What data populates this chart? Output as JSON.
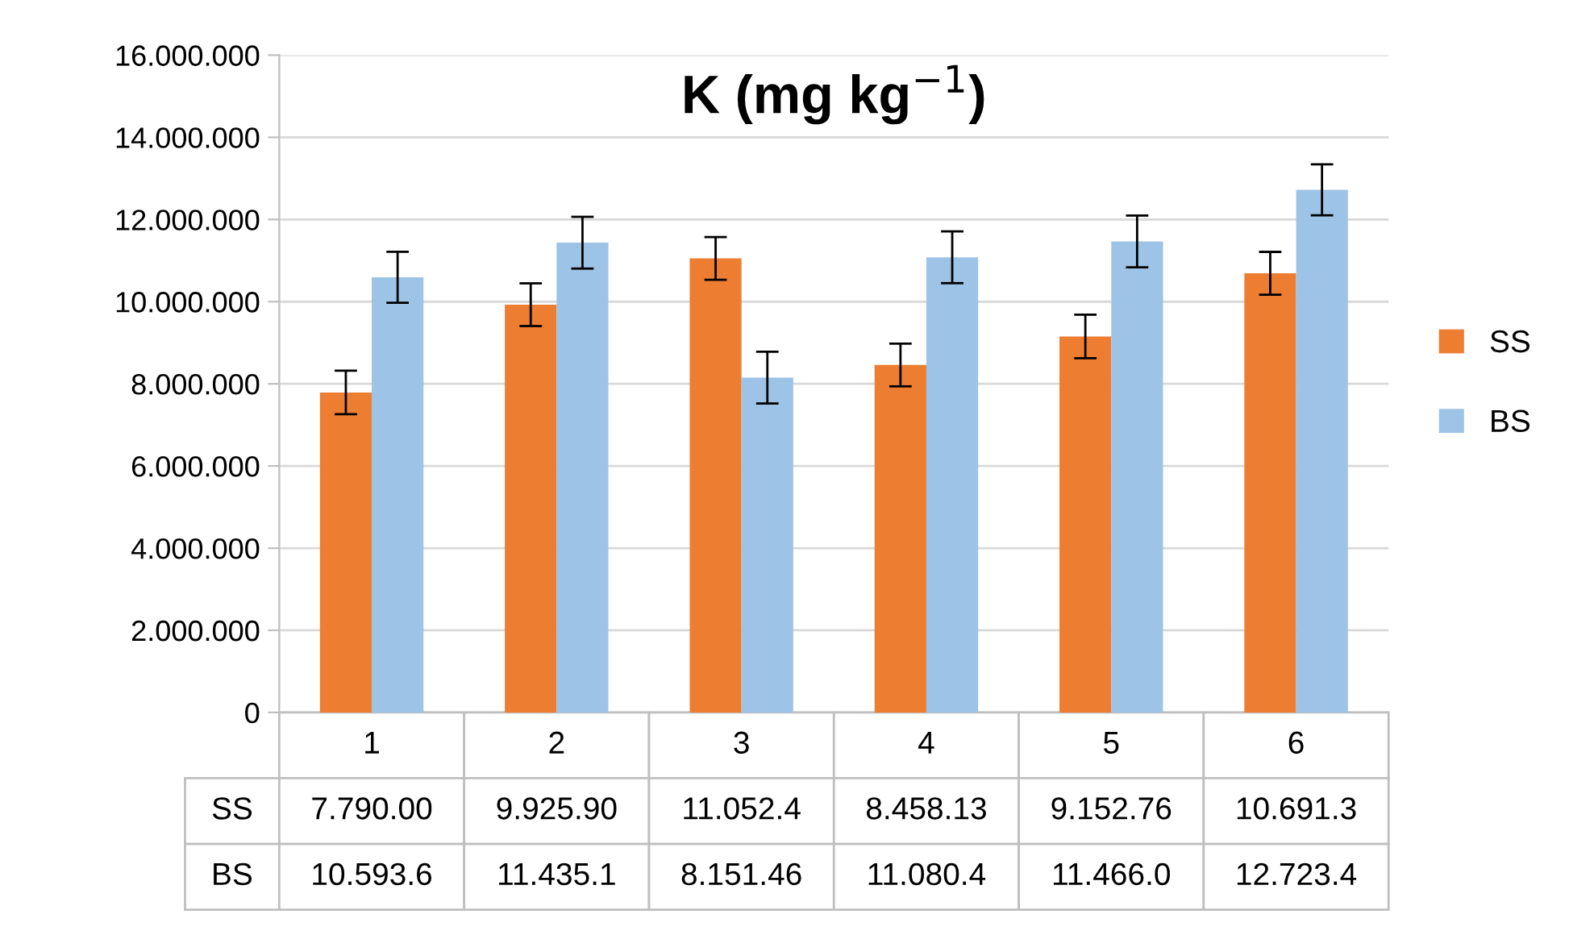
{
  "chart_data": {
    "type": "bar",
    "title": "K (mg kg$^{−1}$)",
    "categories": [
      "1",
      "2",
      "3",
      "4",
      "5",
      "6"
    ],
    "series": [
      {
        "name": "SS",
        "color": "#ed7d31",
        "values": [
          7790000,
          9925900,
          11052400,
          8458130,
          9152760,
          10691300
        ],
        "errors": [
          530000,
          520000,
          520000,
          520000,
          530000,
          520000
        ],
        "value_labels": [
          "7.790.00",
          "9.925.90",
          "11.052.4",
          "8.458.13",
          "9.152.76",
          "10.691.3"
        ]
      },
      {
        "name": "BS",
        "color": "#9dc3e6",
        "values": [
          10593600,
          11435100,
          8151460,
          11080400,
          11466000,
          12723400
        ],
        "errors": [
          620000,
          630000,
          630000,
          630000,
          630000,
          620000
        ],
        "value_labels": [
          "10.593.6",
          "11.435.1",
          "8.151.46",
          "11.080.4",
          "11.466.0",
          "12.723.4"
        ]
      }
    ],
    "ylim": [
      0,
      16000000
    ],
    "yticks": [
      {
        "value": 0,
        "label": "0"
      },
      {
        "value": 2000000,
        "label": "2.000.000"
      },
      {
        "value": 4000000,
        "label": "4.000.000"
      },
      {
        "value": 6000000,
        "label": "6.000.000"
      },
      {
        "value": 8000000,
        "label": "8.000.000"
      },
      {
        "value": 10000000,
        "label": "10.000.000"
      },
      {
        "value": 12000000,
        "label": "12.000.000"
      },
      {
        "value": 14000000,
        "label": "14.000.000"
      },
      {
        "value": 16000000,
        "label": "16.000.000"
      }
    ],
    "grid": "y",
    "legend": "right"
  }
}
